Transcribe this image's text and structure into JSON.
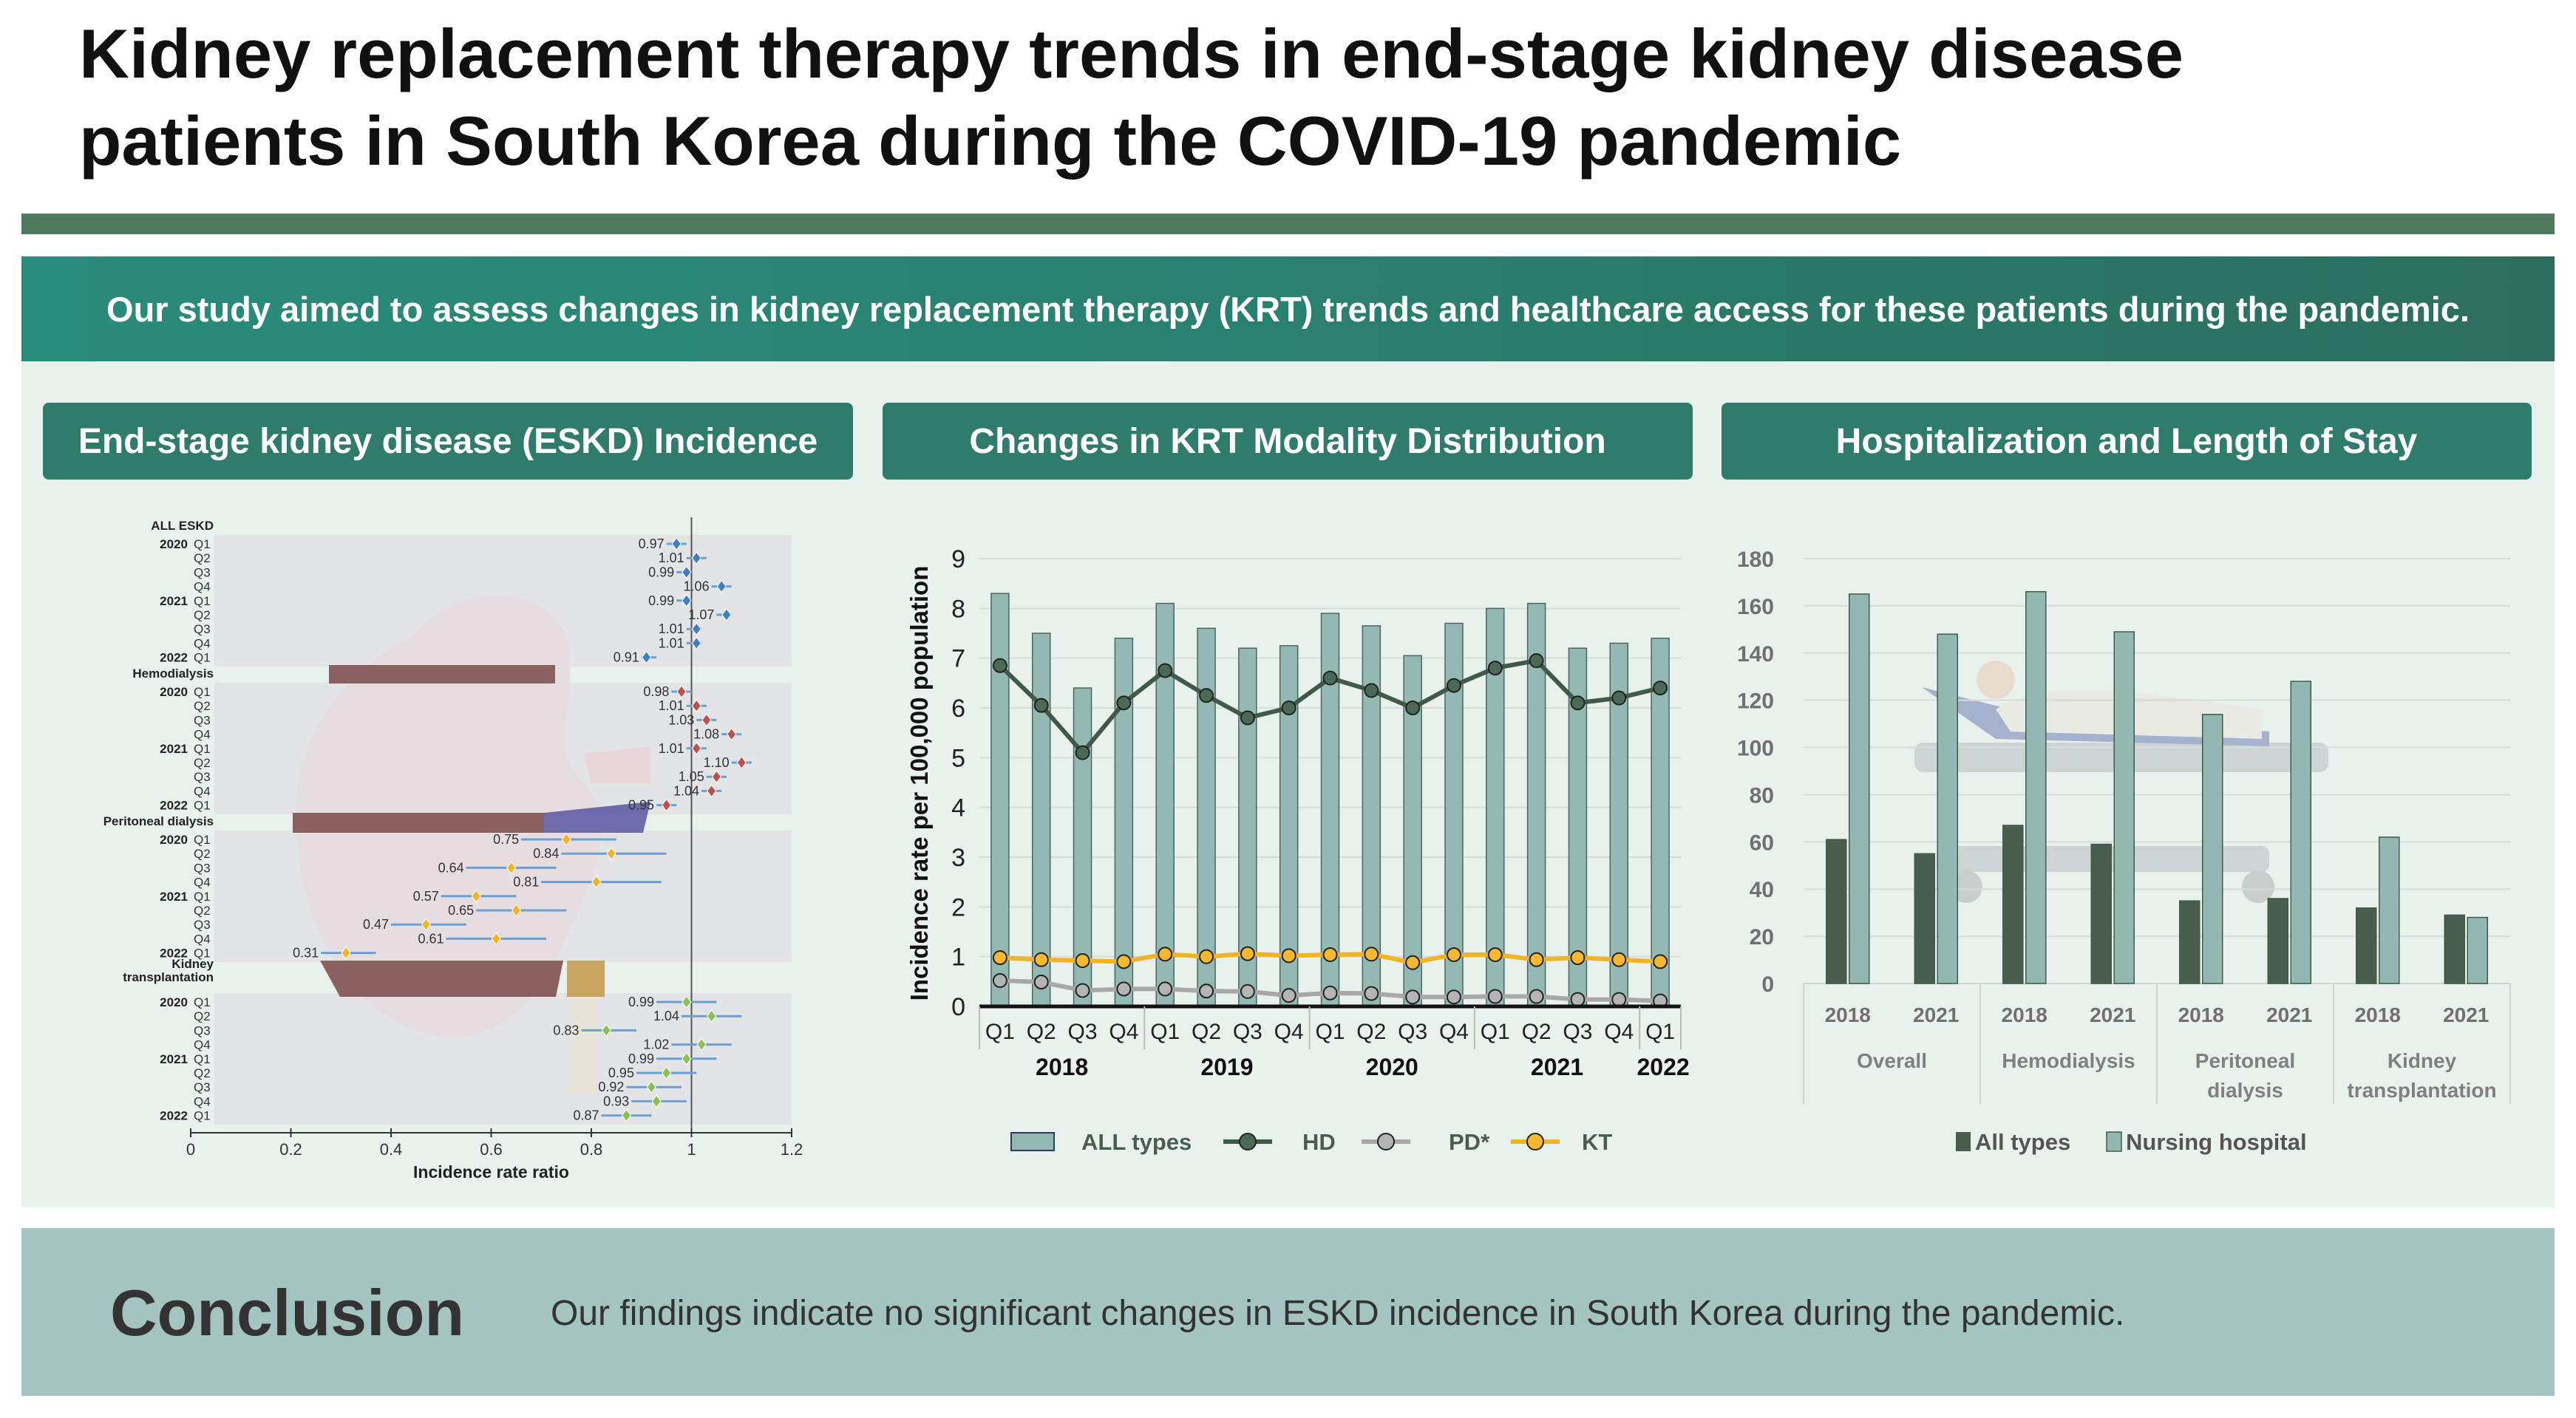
{
  "title": {
    "line1": "Kidney replacement therapy trends in end-stage kidney disease",
    "line2": "patients in South Korea during the COVID-19 pandemic"
  },
  "banner": "Our study aimed to assess changes in kidney replacement therapy (KRT) trends and healthcare access for these patients during the pandemic.",
  "panels": {
    "incidence": "End-stage kidney disease (ESKD) Incidence",
    "modality": "Changes in KRT Modality Distribution",
    "hospitalization": "Hospitalization and Length of Stay"
  },
  "conclusion": {
    "title": "Conclusion",
    "text": "Our findings indicate no significant changes in ESKD incidence in South Korea during the pandemic."
  },
  "colors": {
    "all": "#3f7fc0",
    "hd": "#c0504d",
    "pd": "#f2b324",
    "kt": "#8cc152",
    "ci": "#6a9fd4"
  },
  "chart_data": [
    {
      "type": "forest",
      "xlabel": "Incidence rate ratio",
      "xlim": [
        0,
        1.2
      ],
      "xticks": [
        "0",
        "0.2",
        "0.4",
        "0.6",
        "0.8",
        "1",
        "1.2"
      ],
      "reference": 1,
      "groups": [
        {
          "name": "ALL ESKD",
          "key": "all",
          "rows": [
            {
              "year": "2020",
              "q": "Q1",
              "irr": 0.97,
              "lo": 0.95,
              "hi": 0.99,
              "label": "0.97"
            },
            {
              "year": "",
              "q": "Q2",
              "irr": 1.01,
              "lo": 0.99,
              "hi": 1.03,
              "label": "1.01"
            },
            {
              "year": "",
              "q": "Q3",
              "irr": 0.99,
              "lo": 0.97,
              "hi": 1.0,
              "label": "0.99"
            },
            {
              "year": "",
              "q": "Q4",
              "irr": 1.06,
              "lo": 1.04,
              "hi": 1.08,
              "label": "1.06"
            },
            {
              "year": "2021",
              "q": "Q1",
              "irr": 0.99,
              "lo": 0.97,
              "hi": 1.0,
              "label": "0.99"
            },
            {
              "year": "",
              "q": "Q2",
              "irr": 1.07,
              "lo": 1.05,
              "hi": 1.08,
              "label": "1.07"
            },
            {
              "year": "",
              "q": "Q3",
              "irr": 1.01,
              "lo": 0.99,
              "hi": 1.02,
              "label": "1.01"
            },
            {
              "year": "",
              "q": "Q4",
              "irr": 1.01,
              "lo": 0.99,
              "hi": 1.02,
              "label": "1.01"
            },
            {
              "year": "2022",
              "q": "Q1",
              "irr": 0.91,
              "lo": 0.9,
              "hi": 0.93,
              "label": "0.91"
            }
          ]
        },
        {
          "name": "Hemodialysis",
          "key": "hd",
          "rows": [
            {
              "year": "2020",
              "q": "Q1",
              "irr": 0.98,
              "lo": 0.96,
              "hi": 1.0,
              "label": "0.98"
            },
            {
              "year": "",
              "q": "Q2",
              "irr": 1.01,
              "lo": 0.99,
              "hi": 1.03,
              "label": "1.01"
            },
            {
              "year": "",
              "q": "Q3",
              "irr": 1.03,
              "lo": 1.01,
              "hi": 1.05,
              "label": "1.03"
            },
            {
              "year": "",
              "q": "Q4",
              "irr": 1.08,
              "lo": 1.06,
              "hi": 1.1,
              "label": "1.08"
            },
            {
              "year": "2021",
              "q": "Q1",
              "irr": 1.01,
              "lo": 0.99,
              "hi": 1.03,
              "label": "1.01"
            },
            {
              "year": "",
              "q": "Q2",
              "irr": 1.1,
              "lo": 1.08,
              "hi": 1.12,
              "label": "1.10"
            },
            {
              "year": "",
              "q": "Q3",
              "irr": 1.05,
              "lo": 1.03,
              "hi": 1.07,
              "label": "1.05"
            },
            {
              "year": "",
              "q": "Q4",
              "irr": 1.04,
              "lo": 1.02,
              "hi": 1.06,
              "label": "1.04"
            },
            {
              "year": "2022",
              "q": "Q1",
              "irr": 0.95,
              "lo": 0.93,
              "hi": 0.97,
              "label": "0.95"
            }
          ]
        },
        {
          "name": "Peritoneal dialysis",
          "key": "pd",
          "rows": [
            {
              "year": "2020",
              "q": "Q1",
              "irr": 0.75,
              "lo": 0.66,
              "hi": 0.85,
              "label": "0.75"
            },
            {
              "year": "",
              "q": "Q2",
              "irr": 0.84,
              "lo": 0.74,
              "hi": 0.95,
              "label": "0.84"
            },
            {
              "year": "",
              "q": "Q3",
              "irr": 0.64,
              "lo": 0.55,
              "hi": 0.73,
              "label": "0.64"
            },
            {
              "year": "",
              "q": "Q4",
              "irr": 0.81,
              "lo": 0.7,
              "hi": 0.94,
              "label": "0.81"
            },
            {
              "year": "2021",
              "q": "Q1",
              "irr": 0.57,
              "lo": 0.5,
              "hi": 0.65,
              "label": "0.57"
            },
            {
              "year": "",
              "q": "Q2",
              "irr": 0.65,
              "lo": 0.57,
              "hi": 0.75,
              "label": "0.65"
            },
            {
              "year": "",
              "q": "Q3",
              "irr": 0.47,
              "lo": 0.4,
              "hi": 0.55,
              "label": "0.47"
            },
            {
              "year": "",
              "q": "Q4",
              "irr": 0.61,
              "lo": 0.51,
              "hi": 0.71,
              "label": "0.61"
            },
            {
              "year": "2022",
              "q": "Q1",
              "irr": 0.31,
              "lo": 0.26,
              "hi": 0.37,
              "label": "0.31"
            }
          ]
        },
        {
          "name": "Kidney",
          "name2": "transplantation",
          "key": "kt",
          "rows": [
            {
              "year": "2020",
              "q": "Q1",
              "irr": 0.99,
              "lo": 0.93,
              "hi": 1.05,
              "label": "0.99"
            },
            {
              "year": "",
              "q": "Q2",
              "irr": 1.04,
              "lo": 0.98,
              "hi": 1.1,
              "label": "1.04"
            },
            {
              "year": "",
              "q": "Q3",
              "irr": 0.83,
              "lo": 0.78,
              "hi": 0.89,
              "label": "0.83"
            },
            {
              "year": "",
              "q": "Q4",
              "irr": 1.02,
              "lo": 0.96,
              "hi": 1.08,
              "label": "1.02"
            },
            {
              "year": "2021",
              "q": "Q1",
              "irr": 0.99,
              "lo": 0.93,
              "hi": 1.05,
              "label": "0.99"
            },
            {
              "year": "",
              "q": "Q2",
              "irr": 0.95,
              "lo": 0.89,
              "hi": 1.01,
              "label": "0.95"
            },
            {
              "year": "",
              "q": "Q3",
              "irr": 0.92,
              "lo": 0.87,
              "hi": 0.98,
              "label": "0.92"
            },
            {
              "year": "",
              "q": "Q4",
              "irr": 0.93,
              "lo": 0.88,
              "hi": 0.99,
              "label": "0.93"
            },
            {
              "year": "2022",
              "q": "Q1",
              "irr": 0.87,
              "lo": 0.82,
              "hi": 0.92,
              "label": "0.87"
            }
          ]
        }
      ]
    },
    {
      "type": "bar+line",
      "ylabel": "Incidence rate per 100,000 population",
      "ylim": [
        0,
        9
      ],
      "yticks": [
        "0",
        "1",
        "2",
        "3",
        "4",
        "5",
        "6",
        "7",
        "8",
        "9"
      ],
      "categories": [
        "Q1",
        "Q2",
        "Q3",
        "Q4",
        "Q1",
        "Q2",
        "Q3",
        "Q4",
        "Q1",
        "Q2",
        "Q3",
        "Q4",
        "Q1",
        "Q2",
        "Q3",
        "Q4",
        "Q1"
      ],
      "years": [
        {
          "label": "2018",
          "span": 4
        },
        {
          "label": "2019",
          "span": 4
        },
        {
          "label": "2020",
          "span": 4
        },
        {
          "label": "2021",
          "span": 4
        },
        {
          "label": "2022",
          "span": 1
        }
      ],
      "series": [
        {
          "name": "ALL types",
          "kind": "bar",
          "values": [
            8.3,
            7.5,
            6.4,
            7.4,
            8.1,
            7.6,
            7.2,
            7.25,
            7.9,
            7.65,
            7.05,
            7.7,
            8.0,
            8.1,
            7.2,
            7.3,
            7.4
          ]
        },
        {
          "name": "HD",
          "kind": "line",
          "color": "#3f5a48",
          "marker": "#4b6a56",
          "values": [
            6.85,
            6.05,
            5.1,
            6.1,
            6.75,
            6.25,
            5.8,
            6.0,
            6.6,
            6.35,
            6.0,
            6.45,
            6.8,
            6.95,
            6.1,
            6.2,
            6.4
          ]
        },
        {
          "name": "PD*",
          "kind": "line",
          "color": "#a8a8a8",
          "marker": "#b4b4b4",
          "values": [
            0.52,
            0.49,
            0.32,
            0.35,
            0.35,
            0.31,
            0.3,
            0.22,
            0.27,
            0.26,
            0.19,
            0.19,
            0.2,
            0.2,
            0.14,
            0.14,
            0.11
          ]
        },
        {
          "name": "KT",
          "kind": "line",
          "color": "#f2b324",
          "marker": "#f5b82e",
          "values": [
            0.98,
            0.94,
            0.92,
            0.9,
            1.05,
            1.0,
            1.06,
            1.02,
            1.04,
            1.05,
            0.88,
            1.04,
            1.04,
            0.94,
            0.98,
            0.94,
            0.9
          ]
        }
      ]
    },
    {
      "type": "bar",
      "ylim": [
        0,
        180
      ],
      "yticks": [
        "0",
        "20",
        "40",
        "60",
        "80",
        "100",
        "120",
        "140",
        "160",
        "180"
      ],
      "groups": [
        {
          "label": "Overall",
          "label2": "",
          "sub": [
            {
              "year": "2018",
              "values": [
                61,
                165
              ]
            },
            {
              "year": "2021",
              "values": [
                55,
                148
              ]
            }
          ]
        },
        {
          "label": "Hemodialysis",
          "label2": "",
          "sub": [
            {
              "year": "2018",
              "values": [
                67,
                166
              ]
            },
            {
              "year": "2021",
              "values": [
                59,
                149
              ]
            }
          ]
        },
        {
          "label": "Peritoneal",
          "label2": "dialysis",
          "sub": [
            {
              "year": "2018",
              "values": [
                35,
                114
              ]
            },
            {
              "year": "2021",
              "values": [
                36,
                128
              ]
            }
          ]
        },
        {
          "label": "Kidney",
          "label2": "transplantation",
          "sub": [
            {
              "year": "2018",
              "values": [
                32,
                62
              ]
            },
            {
              "year": "2021",
              "values": [
                29,
                28
              ]
            }
          ]
        }
      ],
      "series": [
        {
          "name": "All types",
          "color": "#4a5e4f"
        },
        {
          "name": "Nursing hospital",
          "color": "#93b8b2"
        }
      ]
    }
  ]
}
